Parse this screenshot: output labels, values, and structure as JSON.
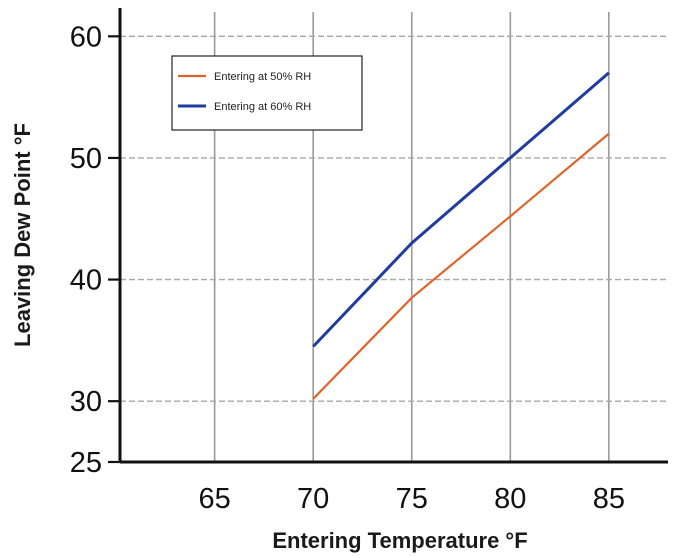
{
  "chart_data": {
    "type": "line",
    "title": "",
    "xlabel": "Entering Temperature °F",
    "ylabel": "Leaving Dew Point °F",
    "xlim": [
      60.2,
      88
    ],
    "ylim": [
      25,
      62
    ],
    "x_ticks": [
      65,
      70,
      75,
      80,
      85
    ],
    "y_ticks": [
      25,
      30,
      40,
      50,
      60
    ],
    "y_grid": [
      30,
      40,
      50,
      60
    ],
    "grid": true,
    "legend": "top-left",
    "series": [
      {
        "name": "Entering at 50% RH",
        "color": "#e0642a",
        "x": [
          70,
          75,
          80,
          85
        ],
        "y": [
          30.2,
          38.5,
          45.2,
          52
        ]
      },
      {
        "name": "Entering at 60% RH",
        "color": "#1f3d9e",
        "x": [
          70,
          75,
          80,
          85
        ],
        "y": [
          34.5,
          43,
          50,
          57
        ]
      }
    ]
  }
}
